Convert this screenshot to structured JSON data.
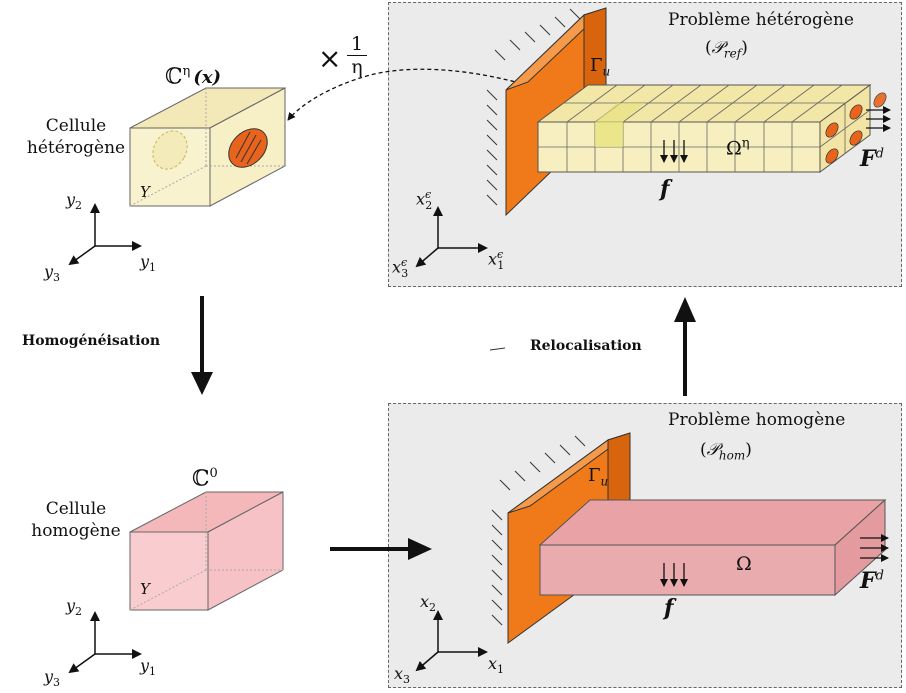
{
  "left_column": {
    "het_cell_tensor": "ℂ",
    "het_cell_tensor_sup": "η",
    "het_cell_tensor_arg": "(x)",
    "het_cell_label_1": "Cellule",
    "het_cell_label_2": "hétérogène",
    "het_cell_Y": "Y",
    "hom_cell_tensor": "ℂ",
    "hom_cell_tensor_sup": "0",
    "hom_cell_label_1": "Cellule",
    "hom_cell_label_2": "homogène",
    "hom_cell_Y": "Y",
    "axis_y1": "y",
    "axis_y2": "y",
    "axis_y3": "y",
    "sub_1": "1",
    "sub_2": "2",
    "sub_3": "3"
  },
  "scale_factor": {
    "times": "×",
    "numerator": "1",
    "denominator": "η"
  },
  "arrows": {
    "homogenisation": "Homogénéisation",
    "relocalisation": "Relocalisation"
  },
  "top_panel": {
    "title": "Problème hétérogène",
    "subtitle_symbol": "𝒫",
    "subtitle_sub": "ref",
    "gamma": "Γ",
    "gamma_sub": "u",
    "omega": "Ω",
    "omega_sup": "η",
    "force_body": "f",
    "force_surface": "F",
    "force_surface_sup": "d",
    "axis_x": "x",
    "axis_eps": "ϵ"
  },
  "bottom_panel": {
    "title": "Problème homogène",
    "subtitle_symbol": "𝒫",
    "subtitle_sub": "hom",
    "gamma": "Γ",
    "gamma_sub": "u",
    "omega": "Ω",
    "force_body": "f",
    "force_surface": "F",
    "force_surface_sup": "d",
    "axis_x": "x"
  },
  "colors": {
    "panel_bg": "#ebebeb",
    "wall": "#f07a1a",
    "het_beam": "#f7efc0",
    "hom_beam": "#e9a9ac",
    "hom_cell": "#f8c9cc",
    "inclusion": "#e8641c"
  }
}
